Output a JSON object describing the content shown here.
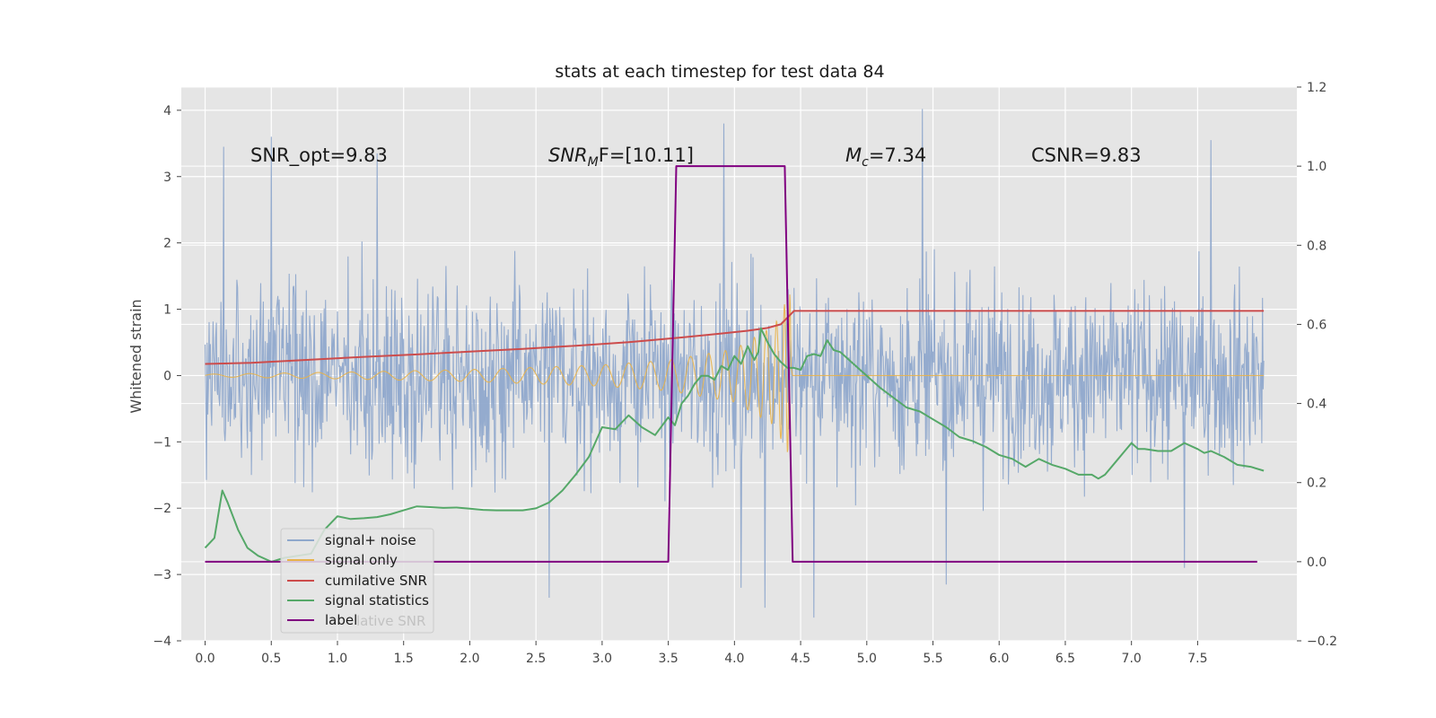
{
  "chart_data": {
    "type": "line",
    "title": "stats at each timestep for test data 84",
    "xlabel": "",
    "ylabel": "Whitened strain",
    "ylabel_right": "",
    "xlim": [
      -0.18,
      8.25
    ],
    "ylim_left": [
      -4.0,
      4.35
    ],
    "ylim_right": [
      -0.2,
      1.2
    ],
    "x_ticks": [
      0.0,
      0.5,
      1.0,
      1.5,
      2.0,
      2.5,
      3.0,
      3.5,
      4.0,
      4.5,
      5.0,
      5.5,
      6.0,
      6.5,
      7.0,
      7.5
    ],
    "x_tick_labels": [
      "0.0",
      "0.5",
      "1.0",
      "1.5",
      "2.0",
      "2.5",
      "3.0",
      "3.5",
      "4.0",
      "4.5",
      "5.0",
      "5.5",
      "6.0",
      "6.5",
      "7.0",
      "7.5"
    ],
    "y_left_ticks": [
      4,
      3,
      2,
      1,
      0,
      -1,
      -2,
      -3,
      -4
    ],
    "y_left_tick_labels": [
      "4",
      "3",
      "2",
      "1",
      "0",
      "−1",
      "−2",
      "−3",
      "−4"
    ],
    "y_right_ticks": [
      1.2,
      1.0,
      0.8,
      0.6,
      0.4,
      0.2,
      0.0,
      -0.2
    ],
    "y_right_tick_labels": [
      "1.2",
      "1.0",
      "0.8",
      "0.6",
      "0.4",
      "0.2",
      "0.0",
      "−0.2"
    ],
    "grid": true,
    "legend_position": "lower-left",
    "annotations": {
      "snr_opt": "SNR_opt=9.83",
      "snr_mf_var": "SNR",
      "snr_mf_sub": "M",
      "snr_mf_rest": "F=[10.11]",
      "mc_var": "M",
      "mc_sub": "c",
      "mc_rest": "=7.34",
      "csnr": "CSNR=9.83"
    },
    "series": [
      {
        "name": "signal+ noise",
        "axis": "left",
        "color": "#8fa8cc",
        "style": "whitened noise, approx. symmetric about 0",
        "x_range": [
          0.0,
          8.0
        ],
        "band_typical": [
          -2.0,
          2.6
        ],
        "peak_spikes": [
          {
            "x": 0.14,
            "y": 3.45
          },
          {
            "x": 0.5,
            "y": 3.6
          },
          {
            "x": 1.3,
            "y": 3.35
          },
          {
            "x": 3.92,
            "y": 3.8
          },
          {
            "x": 5.42,
            "y": 4.02
          },
          {
            "x": 7.6,
            "y": 3.55
          },
          {
            "x": 4.05,
            "y": -3.2
          },
          {
            "x": 4.23,
            "y": -3.5
          },
          {
            "x": 4.6,
            "y": -3.65
          },
          {
            "x": 2.6,
            "y": -3.35
          },
          {
            "x": 5.6,
            "y": -3.15
          },
          {
            "x": 7.4,
            "y": -2.9
          }
        ]
      },
      {
        "name": "signal only",
        "axis": "left",
        "color": "#e8b24a",
        "style": "chirp, envelope grows until merger at ~4.42 then zero",
        "envelope_points": [
          {
            "x": 0.0,
            "y": 0.02
          },
          {
            "x": 1.0,
            "y": 0.05
          },
          {
            "x": 2.0,
            "y": 0.09
          },
          {
            "x": 3.0,
            "y": 0.16
          },
          {
            "x": 3.5,
            "y": 0.23
          },
          {
            "x": 4.0,
            "y": 0.4
          },
          {
            "x": 4.3,
            "y": 0.75
          },
          {
            "x": 4.42,
            "y": 1.25
          },
          {
            "x": 4.44,
            "y": 0.0
          },
          {
            "x": 8.0,
            "y": 0.0
          }
        ]
      },
      {
        "name": "cumilative SNR",
        "axis": "right",
        "color": "#cc4c4c",
        "x": [
          0.0,
          0.35,
          0.8,
          1.2,
          1.6,
          2.0,
          2.4,
          2.8,
          3.2,
          3.6,
          3.9,
          4.1,
          4.25,
          4.35,
          4.45,
          8.0
        ],
        "y": [
          0.5,
          0.503,
          0.511,
          0.518,
          0.524,
          0.531,
          0.538,
          0.546,
          0.555,
          0.567,
          0.577,
          0.584,
          0.591,
          0.6,
          0.634,
          0.634
        ]
      },
      {
        "name": "signal statistics",
        "axis": "right",
        "color": "#55a868",
        "x": [
          0.0,
          0.07,
          0.13,
          0.17,
          0.25,
          0.32,
          0.4,
          0.5,
          0.6,
          0.7,
          0.8,
          0.9,
          1.0,
          1.1,
          1.2,
          1.3,
          1.4,
          1.5,
          1.6,
          1.7,
          1.8,
          1.9,
          2.0,
          2.1,
          2.2,
          2.3,
          2.4,
          2.5,
          2.6,
          2.7,
          2.8,
          2.9,
          3.0,
          3.1,
          3.2,
          3.3,
          3.4,
          3.5,
          3.55,
          3.6,
          3.65,
          3.7,
          3.75,
          3.8,
          3.85,
          3.9,
          3.95,
          4.0,
          4.05,
          4.1,
          4.15,
          4.18,
          4.2,
          4.25,
          4.3,
          4.35,
          4.4,
          4.45,
          4.5,
          4.55,
          4.6,
          4.65,
          4.7,
          4.75,
          4.8,
          4.9,
          5.0,
          5.1,
          5.2,
          5.3,
          5.4,
          5.5,
          5.6,
          5.7,
          5.8,
          5.9,
          6.0,
          6.1,
          6.2,
          6.25,
          6.3,
          6.4,
          6.5,
          6.6,
          6.7,
          6.75,
          6.8,
          6.9,
          7.0,
          7.05,
          7.1,
          7.2,
          7.3,
          7.4,
          7.5,
          7.55,
          7.6,
          7.7,
          7.8,
          7.9,
          8.0
        ],
        "y": [
          0.035,
          0.06,
          0.18,
          0.15,
          0.08,
          0.035,
          0.015,
          0.0,
          0.01,
          0.015,
          0.02,
          0.08,
          0.115,
          0.108,
          0.11,
          0.113,
          0.12,
          0.13,
          0.14,
          0.138,
          0.136,
          0.137,
          0.134,
          0.131,
          0.13,
          0.13,
          0.13,
          0.135,
          0.15,
          0.18,
          0.22,
          0.265,
          0.34,
          0.335,
          0.37,
          0.34,
          0.32,
          0.365,
          0.345,
          0.4,
          0.42,
          0.45,
          0.47,
          0.47,
          0.46,
          0.495,
          0.485,
          0.52,
          0.5,
          0.545,
          0.51,
          0.53,
          0.59,
          0.555,
          0.525,
          0.505,
          0.49,
          0.49,
          0.485,
          0.52,
          0.525,
          0.52,
          0.56,
          0.535,
          0.53,
          0.5,
          0.47,
          0.44,
          0.415,
          0.39,
          0.38,
          0.36,
          0.34,
          0.315,
          0.305,
          0.29,
          0.27,
          0.26,
          0.24,
          0.25,
          0.26,
          0.245,
          0.235,
          0.22,
          0.22,
          0.21,
          0.22,
          0.26,
          0.3,
          0.285,
          0.285,
          0.28,
          0.28,
          0.3,
          0.285,
          0.275,
          0.28,
          0.265,
          0.245,
          0.24,
          0.23
        ]
      },
      {
        "name": "label",
        "axis": "right",
        "color": "#800080",
        "x": [
          0.0,
          3.5,
          3.56,
          4.38,
          4.44,
          7.95
        ],
        "y": [
          0.0,
          0.0,
          1.0,
          1.0,
          0.0,
          0.0
        ]
      }
    ],
    "legend": [
      {
        "label": "signal+ noise",
        "color": "#8fa8cc"
      },
      {
        "label": "signal only",
        "color": "#e8b24a"
      },
      {
        "label": "cumilative SNR",
        "color": "#cc4c4c"
      },
      {
        "label": "signal statistics",
        "color": "#55a868"
      },
      {
        "label": "label",
        "color": "#800080"
      }
    ],
    "legend_ghost_text": "lative SNR"
  }
}
